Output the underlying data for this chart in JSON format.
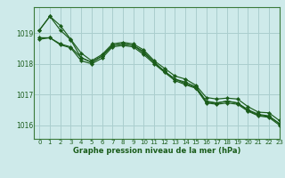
{
  "title": "Graphe pression niveau de la mer (hPa)",
  "background_color": "#ceeaea",
  "grid_color": "#aacece",
  "line_color": "#1a5c1a",
  "xlim": [
    -0.5,
    23
  ],
  "ylim": [
    1015.55,
    1019.85
  ],
  "yticks": [
    1016,
    1017,
    1018,
    1019
  ],
  "xticks": [
    0,
    1,
    2,
    3,
    4,
    5,
    6,
    7,
    8,
    9,
    10,
    11,
    12,
    13,
    14,
    15,
    16,
    17,
    18,
    19,
    20,
    21,
    22,
    23
  ],
  "series": [
    [
      1019.1,
      1019.55,
      1019.25,
      1018.8,
      1018.35,
      1018.1,
      1018.3,
      1018.65,
      1018.7,
      1018.65,
      1018.45,
      1018.1,
      1017.85,
      1017.6,
      1017.5,
      1017.3,
      1016.9,
      1016.85,
      1016.88,
      1016.85,
      1016.6,
      1016.42,
      1016.4,
      1016.15
    ],
    [
      1019.1,
      1019.55,
      1019.1,
      1018.78,
      1018.2,
      1018.05,
      1018.25,
      1018.6,
      1018.65,
      1018.6,
      1018.4,
      1018.05,
      1017.75,
      1017.5,
      1017.4,
      1017.25,
      1016.78,
      1016.72,
      1016.78,
      1016.72,
      1016.5,
      1016.35,
      1016.3,
      1016.05
    ],
    [
      1018.8,
      1018.85,
      1018.65,
      1018.55,
      1018.2,
      1018.05,
      1018.25,
      1018.6,
      1018.65,
      1018.6,
      1018.35,
      1018.05,
      1017.75,
      1017.5,
      1017.35,
      1017.22,
      1016.75,
      1016.72,
      1016.78,
      1016.72,
      1016.48,
      1016.32,
      1016.28,
      1016.05
    ],
    [
      1018.85,
      1018.85,
      1018.62,
      1018.52,
      1018.1,
      1018.0,
      1018.18,
      1018.55,
      1018.6,
      1018.55,
      1018.3,
      1018.0,
      1017.72,
      1017.45,
      1017.32,
      1017.2,
      1016.72,
      1016.68,
      1016.72,
      1016.68,
      1016.45,
      1016.3,
      1016.25,
      1016.0
    ]
  ]
}
